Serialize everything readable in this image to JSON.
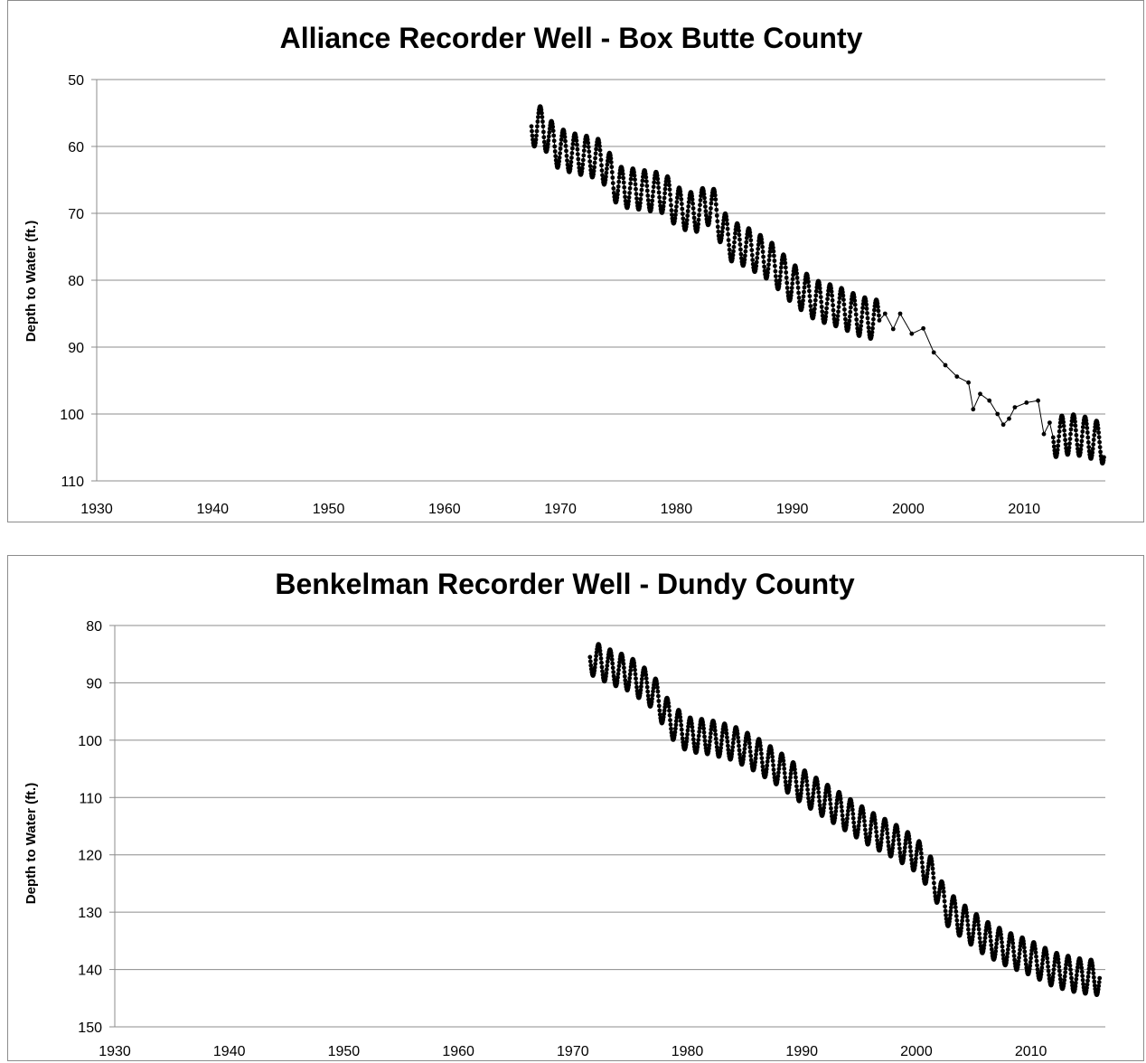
{
  "chart_data": [
    {
      "type": "line",
      "title": "Alliance Recorder Well - Box Butte County",
      "xlabel": "",
      "ylabel": "Depth to Water (ft.)",
      "xlim": [
        1930,
        2017
      ],
      "ylim": [
        50,
        110
      ],
      "y_inverted": true,
      "x_ticks": [
        1930,
        1940,
        1950,
        1960,
        1970,
        1980,
        1990,
        2000,
        2010
      ],
      "y_ticks": [
        50,
        60,
        70,
        80,
        90,
        100,
        110
      ],
      "grid": "horizontal",
      "legend": "none",
      "marker": "circle",
      "line_color": "#000000",
      "seasonal_amplitude": 3,
      "series": [
        {
          "trend": [
            [
              1967.5,
              57
            ],
            [
              1968.5,
              57
            ],
            [
              1969.5,
              60
            ],
            [
              1971,
              61
            ],
            [
              1972.5,
              61.5
            ],
            [
              1973.5,
              62
            ],
            [
              1975,
              66
            ],
            [
              1977,
              66.5
            ],
            [
              1979,
              67
            ],
            [
              1980,
              69
            ],
            [
              1981.5,
              70
            ],
            [
              1983,
              68.5
            ],
            [
              1984.5,
              74
            ],
            [
              1986,
              75
            ],
            [
              1988,
              77
            ],
            [
              1990,
              80.5
            ],
            [
              1992,
              83
            ],
            [
              1994,
              84
            ],
            [
              1996,
              85.5
            ],
            [
              1997.5,
              86
            ]
          ],
          "points": [
            [
              1998,
              85
            ],
            [
              1998.7,
              87.3
            ],
            [
              1999.3,
              85
            ],
            [
              2000.3,
              88
            ],
            [
              2001.3,
              87.2
            ],
            [
              2002.2,
              90.8
            ],
            [
              2003.2,
              92.7
            ],
            [
              2004.2,
              94.4
            ],
            [
              2005.2,
              95.3
            ],
            [
              2005.6,
              99.3
            ],
            [
              2006.2,
              97
            ],
            [
              2007,
              98
            ],
            [
              2007.7,
              100
            ],
            [
              2008.2,
              101.6
            ],
            [
              2008.7,
              100.7
            ],
            [
              2009.2,
              99
            ],
            [
              2010.2,
              98.3
            ],
            [
              2011.2,
              98
            ],
            [
              2011.7,
              103
            ],
            [
              2012.2,
              101.3
            ]
          ],
          "trend2": [
            [
              2012.5,
              103.5
            ],
            [
              2014,
              103
            ],
            [
              2015.5,
              103.5
            ],
            [
              2016.9,
              104.5
            ]
          ]
        }
      ]
    },
    {
      "type": "line",
      "title": "Benkelman Recorder Well - Dundy County",
      "xlabel": "",
      "ylabel": "Depth to Water (ft.)",
      "xlim": [
        1930,
        2016.5
      ],
      "ylim": [
        80,
        150
      ],
      "y_inverted": true,
      "x_ticks": [
        1930,
        1940,
        1950,
        1960,
        1970,
        1980,
        1990,
        2000,
        2010
      ],
      "y_ticks": [
        80,
        90,
        100,
        110,
        120,
        130,
        140,
        150
      ],
      "grid": "horizontal",
      "legend": "none",
      "marker": "circle",
      "line_color": "#000000",
      "seasonal_amplitude": 3,
      "series": [
        {
          "trend": [
            [
              1971.5,
              85.5
            ],
            [
              1973,
              87
            ],
            [
              1975,
              88.5
            ],
            [
              1977,
              91.5
            ],
            [
              1978.5,
              96.5
            ],
            [
              1980,
              99
            ],
            [
              1982,
              99.5
            ],
            [
              1984,
              100.5
            ],
            [
              1986,
              102.5
            ],
            [
              1988,
              105
            ],
            [
              1990,
              108
            ],
            [
              1992,
              110.5
            ],
            [
              1994,
              113
            ],
            [
              1996,
              115.5
            ],
            [
              1998,
              117.5
            ],
            [
              2000,
              120
            ],
            [
              2001.5,
              124
            ],
            [
              2002.5,
              129
            ],
            [
              2004,
              131.5
            ],
            [
              2006,
              134.5
            ],
            [
              2008,
              136.5
            ],
            [
              2010,
              138
            ],
            [
              2012,
              140
            ],
            [
              2014,
              141
            ],
            [
              2016,
              141.5
            ]
          ]
        }
      ]
    }
  ]
}
